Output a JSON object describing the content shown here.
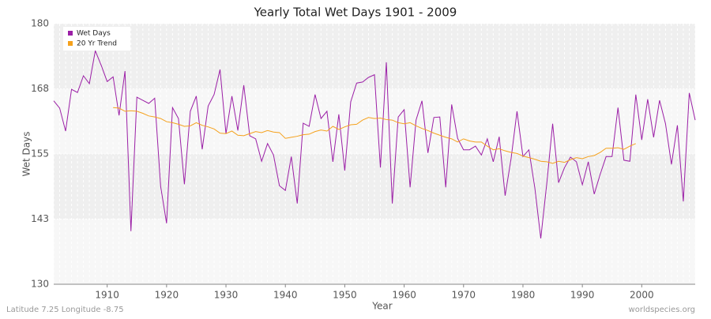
{
  "chart_data": {
    "type": "line",
    "title": "Yearly Total Wet Days 1901 - 2009",
    "x_label": "Year",
    "y_label": "Wet Days",
    "footer_left": "Latitude 7.25 Longitude -8.75",
    "footer_right": "worldspecies.org",
    "legend": "top-left",
    "grid": true,
    "xlim": [
      1901,
      2009
    ],
    "xticks": [
      1910,
      1920,
      1930,
      1940,
      1950,
      1960,
      1970,
      1980,
      1990,
      2000
    ],
    "ylim": [
      130,
      180
    ],
    "yticks": [
      130,
      {
        "value": 142.5,
        "label": "143"
      },
      155,
      {
        "value": 167.5,
        "label": "168"
      },
      180
    ],
    "x": [
      1901,
      1902,
      1903,
      1904,
      1905,
      1906,
      1907,
      1908,
      1909,
      1910,
      1911,
      1912,
      1913,
      1914,
      1915,
      1916,
      1917,
      1918,
      1919,
      1920,
      1921,
      1922,
      1923,
      1924,
      1925,
      1926,
      1927,
      1928,
      1929,
      1930,
      1931,
      1932,
      1933,
      1934,
      1935,
      1936,
      1937,
      1938,
      1939,
      1940,
      1941,
      1942,
      1943,
      1944,
      1945,
      1946,
      1947,
      1948,
      1949,
      1950,
      1951,
      1952,
      1953,
      1954,
      1955,
      1956,
      1957,
      1958,
      1959,
      1960,
      1961,
      1962,
      1963,
      1964,
      1965,
      1966,
      1967,
      1968,
      1969,
      1970,
      1971,
      1972,
      1973,
      1974,
      1975,
      1976,
      1977,
      1978,
      1979,
      1980,
      1981,
      1982,
      1983,
      1984,
      1985,
      1986,
      1987,
      1988,
      1989,
      1990,
      1991,
      1992,
      1993,
      1994,
      1995,
      1996,
      1997,
      1998,
      1999,
      2000,
      2001,
      2002,
      2003,
      2004,
      2005,
      2006,
      2007,
      2008,
      2009
    ],
    "series": [
      {
        "name": "Wet Days",
        "color": "#9b1fa6",
        "values": [
          165.2,
          163.8,
          159.4,
          167.4,
          166.8,
          170,
          168.5,
          174.8,
          172,
          168.9,
          169.8,
          162.4,
          170.9,
          140.2,
          165.9,
          165.3,
          164.7,
          165.7,
          148.8,
          141.7,
          163.9,
          161.8,
          149.2,
          163.2,
          166.1,
          155.9,
          164.2,
          166.4,
          171.2,
          158.9,
          166.1,
          159.5,
          168.2,
          158.5,
          157.9,
          153.6,
          157,
          154.8,
          148.9,
          148,
          154.5,
          145.5,
          160.9,
          160.3,
          166.4,
          161.8,
          163.2,
          153.5,
          162.6,
          151.8,
          165,
          168.6,
          168.8,
          169.7,
          170.2,
          152.4,
          172.6,
          145.5,
          162.1,
          163.5,
          148.6,
          161.5,
          165.2,
          155.2,
          162,
          162.1,
          148.6,
          164.5,
          158,
          155.8,
          155.8,
          156.5,
          154.8,
          157.9,
          153.5,
          158.3,
          147,
          154.1,
          163.2,
          154.5,
          155.8,
          148.5,
          138.8,
          149.2,
          160.8,
          149.5,
          152.4,
          154.4,
          153.5,
          149.1,
          153.5,
          147.3,
          151.1,
          154.5,
          154.5,
          163.9,
          153.8,
          153.6,
          166.4,
          157.7,
          165.5,
          158.2,
          165.3,
          160.8,
          153,
          160.5,
          145.9,
          166.7,
          161.5
        ]
      },
      {
        "name": "20 Yr Trend",
        "color": "#f5a11c",
        "values": [
          null,
          null,
          null,
          null,
          null,
          null,
          null,
          null,
          null,
          null,
          163.9,
          163.8,
          163.2,
          163.3,
          163.2,
          162.8,
          162.3,
          162.1,
          161.8,
          161.2,
          161,
          160.7,
          160.3,
          160.4,
          161,
          160.5,
          160.2,
          159.8,
          159,
          158.9,
          159.4,
          158.6,
          158.5,
          158.9,
          159.3,
          159.1,
          159.5,
          159.2,
          159.1,
          158,
          158.2,
          158.4,
          158.7,
          158.8,
          159.3,
          159.6,
          159.4,
          160.3,
          159.7,
          160.2,
          160.6,
          160.7,
          161.5,
          162,
          161.8,
          161.9,
          161.6,
          161.5,
          161,
          160.8,
          161,
          160.4,
          159.9,
          159.5,
          159,
          158.6,
          158.2,
          157.9,
          157.3,
          157.9,
          157.5,
          157.3,
          157.3,
          156.5,
          155.8,
          156,
          155.6,
          155.3,
          155.1,
          154.6,
          154.3,
          154,
          153.6,
          153.5,
          153.2,
          153.6,
          153.4,
          153.9,
          154.3,
          154.1,
          154.5,
          154.7,
          155.3,
          156.1,
          156.1,
          156.2,
          155.9,
          156.5,
          157,
          null,
          null,
          null,
          null,
          null,
          null,
          null,
          null,
          null,
          null
        ]
      }
    ]
  }
}
